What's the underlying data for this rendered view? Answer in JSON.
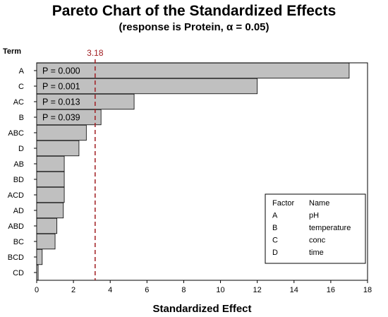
{
  "chart_data": {
    "type": "bar",
    "orientation": "horizontal",
    "title": "Pareto Chart of the Standardized Effects",
    "subtitle": "(response is Protein, α = 0.05)",
    "xlabel": "Standardized Effect",
    "ylabel": "Term",
    "xlim": [
      0,
      18
    ],
    "xticks": [
      0,
      2,
      4,
      6,
      8,
      10,
      12,
      14,
      16,
      18
    ],
    "categories": [
      "A",
      "C",
      "AC",
      "B",
      "ABC",
      "D",
      "AB",
      "BD",
      "ACD",
      "AD",
      "ABD",
      "BC",
      "BCD",
      "CD"
    ],
    "values": [
      17.0,
      12.0,
      5.3,
      3.5,
      2.7,
      2.3,
      1.5,
      1.5,
      1.5,
      1.45,
      1.1,
      1.0,
      0.3,
      0.08
    ],
    "p_value_labels": [
      "P = 0.000",
      "P = 0.001",
      "P = 0.013",
      "P = 0.039",
      "",
      "",
      "",
      "",
      "",
      "",
      "",
      "",
      "",
      ""
    ],
    "reference_line": {
      "value": 3.18,
      "label": "3.18",
      "color": "#a11d21"
    },
    "bar_color": "#c0c0c0",
    "grid": false,
    "legend": {
      "placement": "bottom-right",
      "headers": [
        "Factor",
        "Name"
      ],
      "rows": [
        {
          "factor": "A",
          "name": "pH"
        },
        {
          "factor": "B",
          "name": "temperature"
        },
        {
          "factor": "C",
          "name": "conc"
        },
        {
          "factor": "D",
          "name": "time"
        }
      ]
    }
  }
}
